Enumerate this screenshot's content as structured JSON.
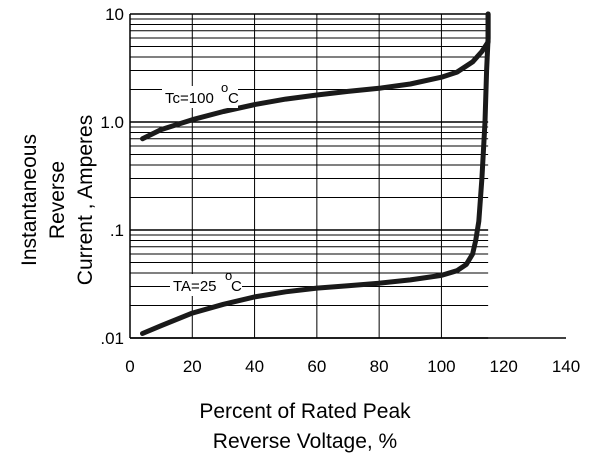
{
  "chart_data": {
    "type": "line",
    "xlabel_lines": [
      "Percent of Rated Peak",
      "Reverse Voltage, %"
    ],
    "ylabel_lines": [
      "Instantaneous",
      "Reverse",
      "Current , Amperes"
    ],
    "x_ticks": [
      "0",
      "20",
      "40",
      "60",
      "80",
      "100",
      "120",
      "140"
    ],
    "y_ticks": [
      {
        "value": 10,
        "label": "10"
      },
      {
        "value": 1,
        "label": "1.0"
      },
      {
        "value": 0.1,
        "label": ".1"
      },
      {
        "value": 0.01,
        "label": ".01"
      }
    ],
    "xlim": [
      0,
      140
    ],
    "ylim": [
      0.01,
      10
    ],
    "y_scale": "log",
    "grid": true,
    "grid_region_xlim": [
      0,
      115
    ],
    "series": [
      {
        "name": "Tc=100°C",
        "label_text": "Tc=100",
        "label_suffix": "C",
        "x": [
          4,
          10,
          20,
          30,
          40,
          50,
          60,
          70,
          80,
          90,
          100,
          105,
          110,
          113,
          115,
          115
        ],
        "y": [
          0.7,
          0.85,
          1.05,
          1.25,
          1.45,
          1.63,
          1.78,
          1.92,
          2.05,
          2.25,
          2.6,
          2.9,
          3.6,
          4.5,
          5.5,
          10
        ]
      },
      {
        "name": "TA=25°C",
        "label_text": "TA=25",
        "label_suffix": "C",
        "x": [
          4,
          10,
          20,
          30,
          40,
          50,
          60,
          70,
          80,
          90,
          100,
          105,
          108,
          110,
          111,
          112,
          113,
          114,
          114.5,
          115,
          115
        ],
        "y": [
          0.011,
          0.013,
          0.017,
          0.0205,
          0.024,
          0.0268,
          0.029,
          0.0305,
          0.0322,
          0.0345,
          0.038,
          0.042,
          0.048,
          0.06,
          0.08,
          0.12,
          0.3,
          1.0,
          3.0,
          6.0,
          10
        ]
      }
    ]
  }
}
